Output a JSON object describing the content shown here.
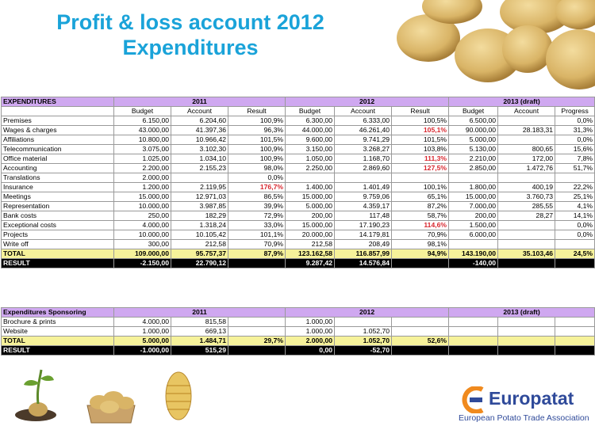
{
  "title": {
    "line1": "Profit & loss account 2012",
    "line2": "Expenditures"
  },
  "logo": {
    "name": "Europatat",
    "subtitle": "European Potato Trade Association"
  },
  "table1": {
    "header": {
      "label": "EXPENDITURES",
      "y2011": "2011",
      "y2012": "2012",
      "y2013": "2013 (draft)"
    },
    "subheader": [
      "",
      "Budget",
      "Account",
      "Result",
      "Budget",
      "Account",
      "Result",
      "Budget",
      "Account",
      "Progress"
    ],
    "rows": [
      [
        "Premises",
        "6.150,00",
        "6.204,60",
        "100,9%",
        "6.300,00",
        "6.333,00",
        "100,5%",
        "6.500,00",
        "",
        "0,0%"
      ],
      [
        "Wages & charges",
        "43.000,00",
        "41.397,36",
        "96,3%",
        "44.000,00",
        "46.261,40",
        "105,1%",
        "90.000,00",
        "28.183,31",
        "31,3%"
      ],
      [
        "Affiliations",
        "10.800,00",
        "10.966,42",
        "101,5%",
        "9.600,00",
        "9.741,29",
        "101,5%",
        "5.000,00",
        "",
        "0,0%"
      ],
      [
        "Telecommunication",
        "3.075,00",
        "3.102,30",
        "100,9%",
        "3.150,00",
        "3.268,27",
        "103,8%",
        "5.130,00",
        "800,65",
        "15,6%"
      ],
      [
        "Office material",
        "1.025,00",
        "1.034,10",
        "100,9%",
        "1.050,00",
        "1.168,70",
        "111,3%",
        "2.210,00",
        "172,00",
        "7,8%"
      ],
      [
        "Accounting",
        "2.200,00",
        "2.155,23",
        "98,0%",
        "2.250,00",
        "2.869,60",
        "127,5%",
        "2.850,00",
        "1.472,76",
        "51,7%"
      ],
      [
        "Translations",
        "2.000,00",
        "",
        "0,0%",
        "",
        "",
        "",
        "",
        "",
        ""
      ],
      [
        "Insurance",
        "1.200,00",
        "2.119,95",
        "176,7%",
        "1.400,00",
        "1.401,49",
        "100,1%",
        "1.800,00",
        "400,19",
        "22,2%"
      ],
      [
        "Meetings",
        "15.000,00",
        "12.971,03",
        "86,5%",
        "15.000,00",
        "9.759,06",
        "65,1%",
        "15.000,00",
        "3.760,73",
        "25,1%"
      ],
      [
        "Representation",
        "10.000,00",
        "3.987,85",
        "39,9%",
        "5.000,00",
        "4.359,17",
        "87,2%",
        "7.000,00",
        "285,55",
        "4,1%"
      ],
      [
        "Bank costs",
        "250,00",
        "182,29",
        "72,9%",
        "200,00",
        "117,48",
        "58,7%",
        "200,00",
        "28,27",
        "14,1%"
      ],
      [
        "Exceptional costs",
        "4.000,00",
        "1.318,24",
        "33,0%",
        "15.000,00",
        "17.190,23",
        "114,6%",
        "1.500,00",
        "",
        "0,0%"
      ],
      [
        "Projects",
        "10.000,00",
        "10.105,42",
        "101,1%",
        "20.000,00",
        "14.179,81",
        "70,9%",
        "6.000,00",
        "",
        "0,0%"
      ],
      [
        "Write off",
        "300,00",
        "212,58",
        "70,9%",
        "212,58",
        "208,49",
        "98,1%",
        "",
        "",
        ""
      ]
    ],
    "total": [
      "TOTAL",
      "109.000,00",
      "95.757,37",
      "87,9%",
      "123.162,58",
      "116.857,99",
      "94,9%",
      "143.190,00",
      "35.103,46",
      "24,5%"
    ],
    "result": [
      "RESULT",
      "-2.150,00",
      "22.790,12",
      "",
      "9.287,42",
      "14.576,84",
      "",
      "-140,00",
      "",
      ""
    ]
  },
  "table2": {
    "header": {
      "label": "Expenditures Sponsoring",
      "y2011": "2011",
      "y2012": "2012",
      "y2013": "2013 (draft)"
    },
    "rows": [
      [
        "Brochure & prints",
        "4.000,00",
        "815,58",
        "",
        "1.000,00",
        "",
        "",
        "",
        "",
        ""
      ],
      [
        "Website",
        "1.000,00",
        "669,13",
        "",
        "1.000,00",
        "1.052,70",
        "",
        "",
        "",
        ""
      ]
    ],
    "total": [
      "TOTAL",
      "5.000,00",
      "1.484,71",
      "29,7%",
      "2.000,00",
      "1.052,70",
      "52,6%",
      "",
      "",
      ""
    ],
    "result": [
      "RESULT",
      "-1.000,00",
      "515,29",
      "",
      "0,00",
      "-52,70",
      "",
      "",
      "",
      ""
    ]
  },
  "highlight_color": "#d8262e"
}
